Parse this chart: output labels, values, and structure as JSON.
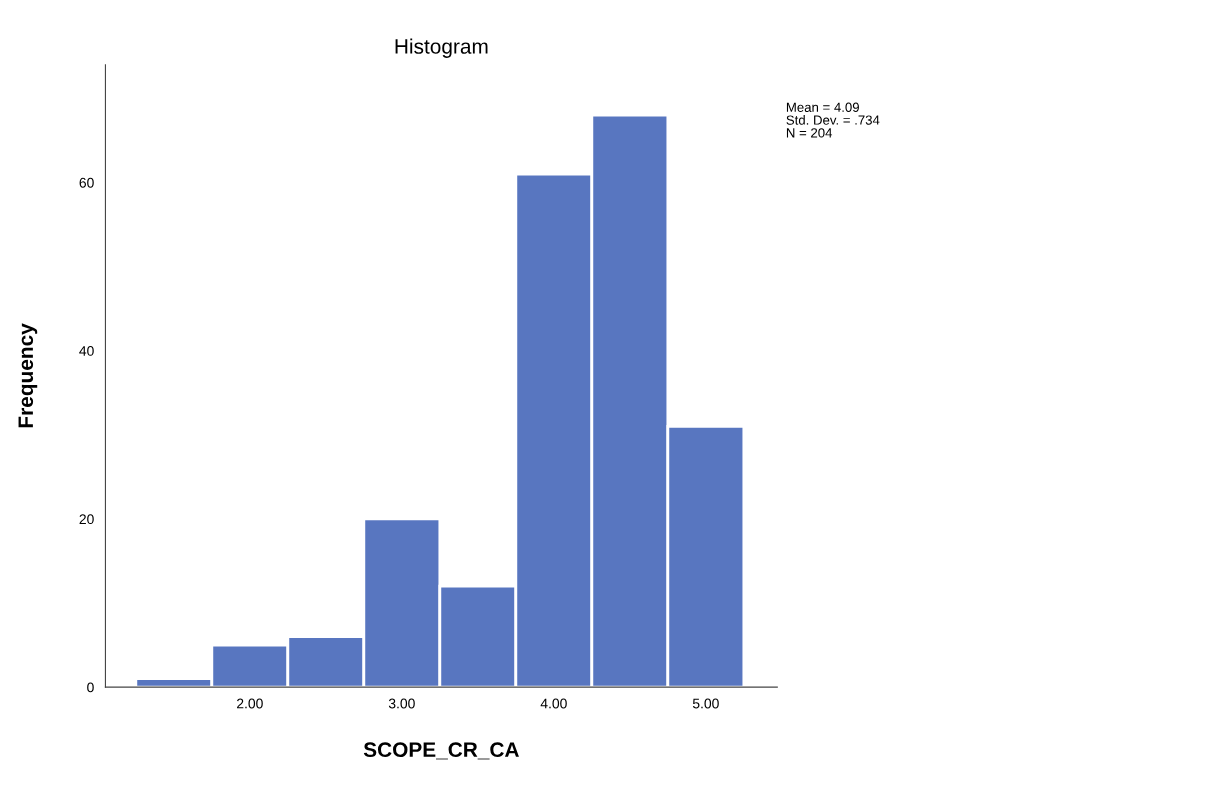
{
  "chart_data": {
    "type": "histogram",
    "title": "Histogram",
    "xlabel": "SCOPE_CR_CA",
    "ylabel": "Frequency",
    "bins": [
      1.25,
      1.75,
      2.25,
      2.75,
      3.25,
      3.75,
      4.25,
      4.75,
      5.25
    ],
    "values": [
      1,
      5,
      6,
      20,
      12,
      61,
      68,
      31
    ],
    "color": "#5876c0",
    "xlim": [
      1.05,
      5.47
    ],
    "ylim": [
      0,
      74
    ],
    "xticks": [
      {
        "value": 2,
        "label": "2.00"
      },
      {
        "value": 3,
        "label": "3.00"
      },
      {
        "value": 4,
        "label": "4.00"
      },
      {
        "value": 5,
        "label": "5.00"
      }
    ],
    "yticks": [
      0,
      20,
      40,
      60
    ],
    "grid": false,
    "legend": false,
    "annotations": [
      "Mean = 4.09",
      "Std. Dev. = .734",
      "N = 204"
    ]
  }
}
